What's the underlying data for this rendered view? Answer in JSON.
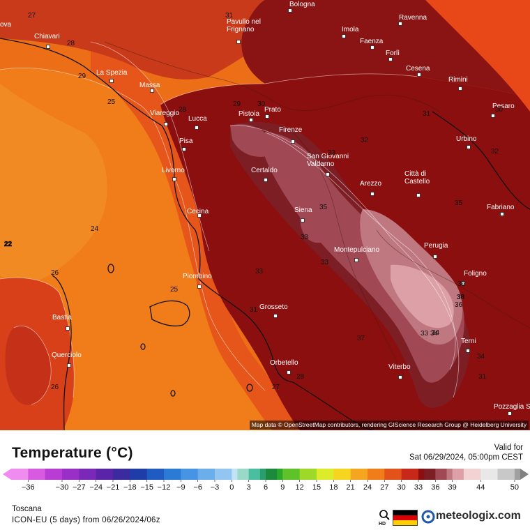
{
  "map": {
    "cities": [
      {
        "name": "Bologna"
      },
      {
        "name": "Ravenna"
      },
      {
        "name": "Imola"
      },
      {
        "name": "Pavullo nel Frignano"
      },
      {
        "name": "Faenza"
      },
      {
        "name": "Forlì"
      },
      {
        "name": "Chiavari"
      },
      {
        "name": "Cesena"
      },
      {
        "name": "La Spezia"
      },
      {
        "name": "Rimini"
      },
      {
        "name": "Massa"
      },
      {
        "name": "Pesaro"
      },
      {
        "name": "Prato"
      },
      {
        "name": "Pistoia"
      },
      {
        "name": "Viareggio"
      },
      {
        "name": "Lucca"
      },
      {
        "name": "Firenze"
      },
      {
        "name": "Urbino"
      },
      {
        "name": "Pisa"
      },
      {
        "name": "San Giovanni Valdarno"
      },
      {
        "name": "Certaldo"
      },
      {
        "name": "Livorno"
      },
      {
        "name": "Arezzo"
      },
      {
        "name": "Città di Castello"
      },
      {
        "name": "Fabriano"
      },
      {
        "name": "Cecina"
      },
      {
        "name": "Siena"
      },
      {
        "name": "Perugia"
      },
      {
        "name": "Montepulciano"
      },
      {
        "name": "Piombino"
      },
      {
        "name": "Foligno"
      },
      {
        "name": "Grosseto"
      },
      {
        "name": "Bastia"
      },
      {
        "name": "Terni"
      },
      {
        "name": "Querciolo"
      },
      {
        "name": "Orbetello"
      },
      {
        "name": "Viterbo"
      },
      {
        "name": "Pozzaglia Sabina"
      }
    ],
    "edge_labels": [
      "ova"
    ],
    "isotherm_labels": [
      "27",
      "31",
      "28",
      "29",
      "25",
      "28",
      "29",
      "30",
      "31",
      "32",
      "24",
      "22",
      "26",
      "25",
      "35",
      "33",
      "33",
      "34",
      "33",
      "35",
      "31",
      "31",
      "36",
      "34",
      "38",
      "36",
      "34",
      "33",
      "32",
      "26",
      "27",
      "28",
      "30",
      "33",
      "37"
    ],
    "attribution": "Map data © OpenStreetMap contributors, rendering GIScience Research Group @ Heidelberg University"
  },
  "header": {
    "title": "Temperature (°C)",
    "valid_label": "Valid for",
    "valid_time": "Sat 06/29/2024, 05:00pm CEST"
  },
  "legend": {
    "min": -39,
    "max": 51,
    "ticks": [
      "-36",
      "-30",
      "-27",
      "-24",
      "-21",
      "-18",
      "-15",
      "-12",
      "-9",
      "-6",
      "-3",
      "0",
      "3",
      "6",
      "9",
      "12",
      "15",
      "18",
      "21",
      "24",
      "27",
      "30",
      "33",
      "36",
      "39",
      "44",
      "50"
    ],
    "colors": {
      "-39": "#f08cf0",
      "-36": "#d85ae0",
      "-33": "#b83dd4",
      "-30": "#9a2fc7",
      "-27": "#7a28b8",
      "-24": "#5a24a8",
      "-21": "#3c2aa0",
      "-18": "#1f3da8",
      "-15": "#1f5bc0",
      "-12": "#2a7ad6",
      "-9": "#4894e4",
      "-6": "#6aaeec",
      "-3": "#92c6f2",
      "0": "#c2e2f6",
      "1": "#9ad8c8",
      "3": "#4cbea0",
      "5": "#2a9e6e",
      "6": "#1c8a3c",
      "8": "#2aa82a",
      "9": "#5ec22a",
      "12": "#9ed828",
      "15": "#dceb2a",
      "18": "#f5d51f",
      "21": "#f5a51f",
      "24": "#f07c1a",
      "27": "#e2521a",
      "30": "#c8281a",
      "33": "#8c0f0f",
      "34": "#7d1d24",
      "36": "#a04854",
      "38": "#c07880",
      "39": "#dca0a6",
      "41": "#f2d2d2",
      "44": "#e8e8e8",
      "47": "#c8c8c8",
      "50": "#a0a0a0",
      "51": "#808080"
    }
  },
  "footer": {
    "region": "Toscana",
    "model": "ICON-EU (5 days) from 06/26/2024/06z",
    "brand": "meteologix.com"
  }
}
